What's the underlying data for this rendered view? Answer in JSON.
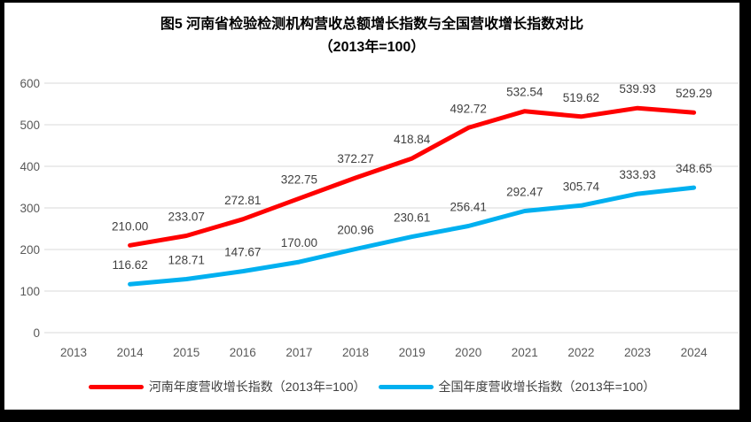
{
  "title": {
    "line1": "图5  河南省检验检测机构营收总额增长指数与全国营收增长指数对比",
    "line2": "（2013年=100）"
  },
  "chart_data": {
    "type": "line",
    "categories": [
      "2013",
      "2014",
      "2015",
      "2016",
      "2017",
      "2018",
      "2019",
      "2020",
      "2021",
      "2022",
      "2023",
      "2024"
    ],
    "series": [
      {
        "name": "河南年度营收增长指数（2013年=100）",
        "color": "#FF0000",
        "values": [
          null,
          210.0,
          233.07,
          272.81,
          322.75,
          372.27,
          418.84,
          492.72,
          532.54,
          519.62,
          539.93,
          529.29
        ]
      },
      {
        "name": "全国年度营收增长指数（2013年=100）",
        "color": "#00B0F0",
        "values": [
          null,
          116.62,
          128.71,
          147.67,
          170.0,
          200.96,
          230.61,
          256.41,
          292.47,
          305.74,
          333.93,
          348.65
        ]
      }
    ],
    "title": "图5  河南省检验检测机构营收总额增长指数与全国营收增长指数对比（2013年=100）",
    "xlabel": "",
    "ylabel": "",
    "ylim": [
      0,
      600
    ],
    "yticks": [
      0,
      100,
      200,
      300,
      400,
      500,
      600
    ],
    "grid": true,
    "legend_position": "bottom",
    "data_labels": true,
    "label_decimals": 2
  },
  "colors": {
    "grid": "#D9D9D9",
    "axis_text": "#595959",
    "data_label_text": "#404040",
    "title_text": "#000000",
    "frame": "#000000",
    "plot_background": "#FFFFFF"
  }
}
